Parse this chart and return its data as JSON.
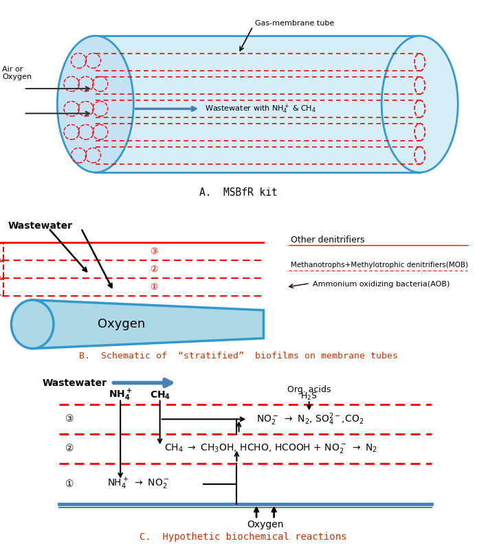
{
  "fig_width": 6.94,
  "fig_height": 7.98,
  "blue": "#3399CC",
  "red": "#FF0000",
  "light_blue_fill": "#D6EEF8",
  "title_A": "A.  MSBfR kit",
  "title_B": "B.  Schematic of  “stratified”  biofilms on membrane tubes",
  "title_C": "C.  Hypothetic biochemical reactions"
}
